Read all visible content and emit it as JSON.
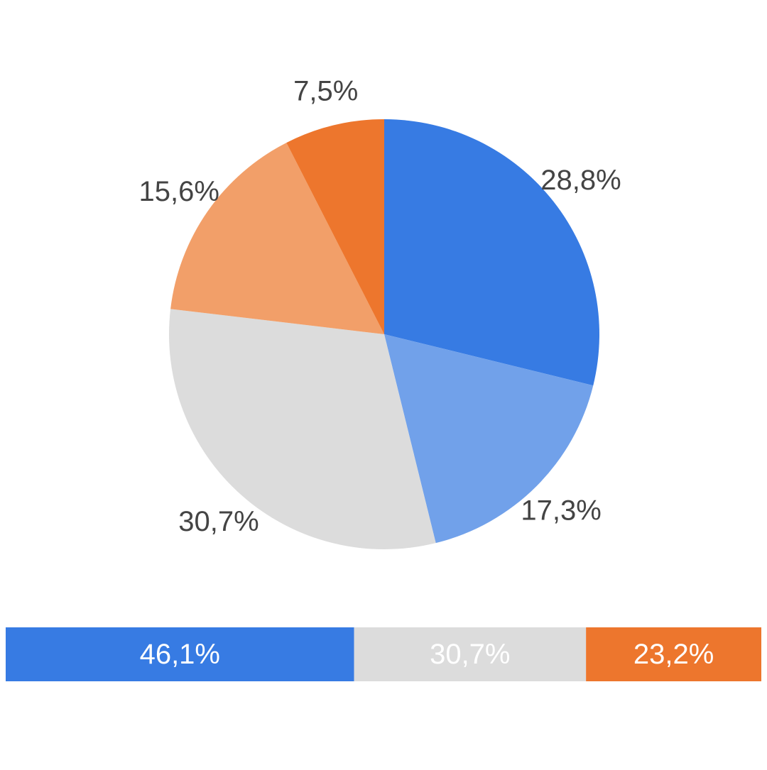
{
  "chart_data": [
    {
      "type": "pie",
      "start": "12 o'clock",
      "direction": "clockwise",
      "slices": [
        {
          "label": "28,8%",
          "value": 28.8,
          "color": "#377be3"
        },
        {
          "label": "17,3%",
          "value": 17.3,
          "color": "#71a1ea"
        },
        {
          "label": "30,7%",
          "value": 30.7,
          "color": "#dcdcdc"
        },
        {
          "label": "15,6%",
          "value": 15.6,
          "color": "#f29f69"
        },
        {
          "label": "7,5%",
          "value": 7.5,
          "color": "#ed762d"
        }
      ]
    },
    {
      "type": "bar",
      "orientation": "horizontal",
      "stacked": true,
      "segments": [
        {
          "label": "46,1%",
          "value": 46.1,
          "color": "#377be3"
        },
        {
          "label": "30,7%",
          "value": 30.7,
          "color": "#dcdcdc"
        },
        {
          "label": "23,2%",
          "value": 23.2,
          "color": "#ed762d"
        }
      ]
    }
  ]
}
